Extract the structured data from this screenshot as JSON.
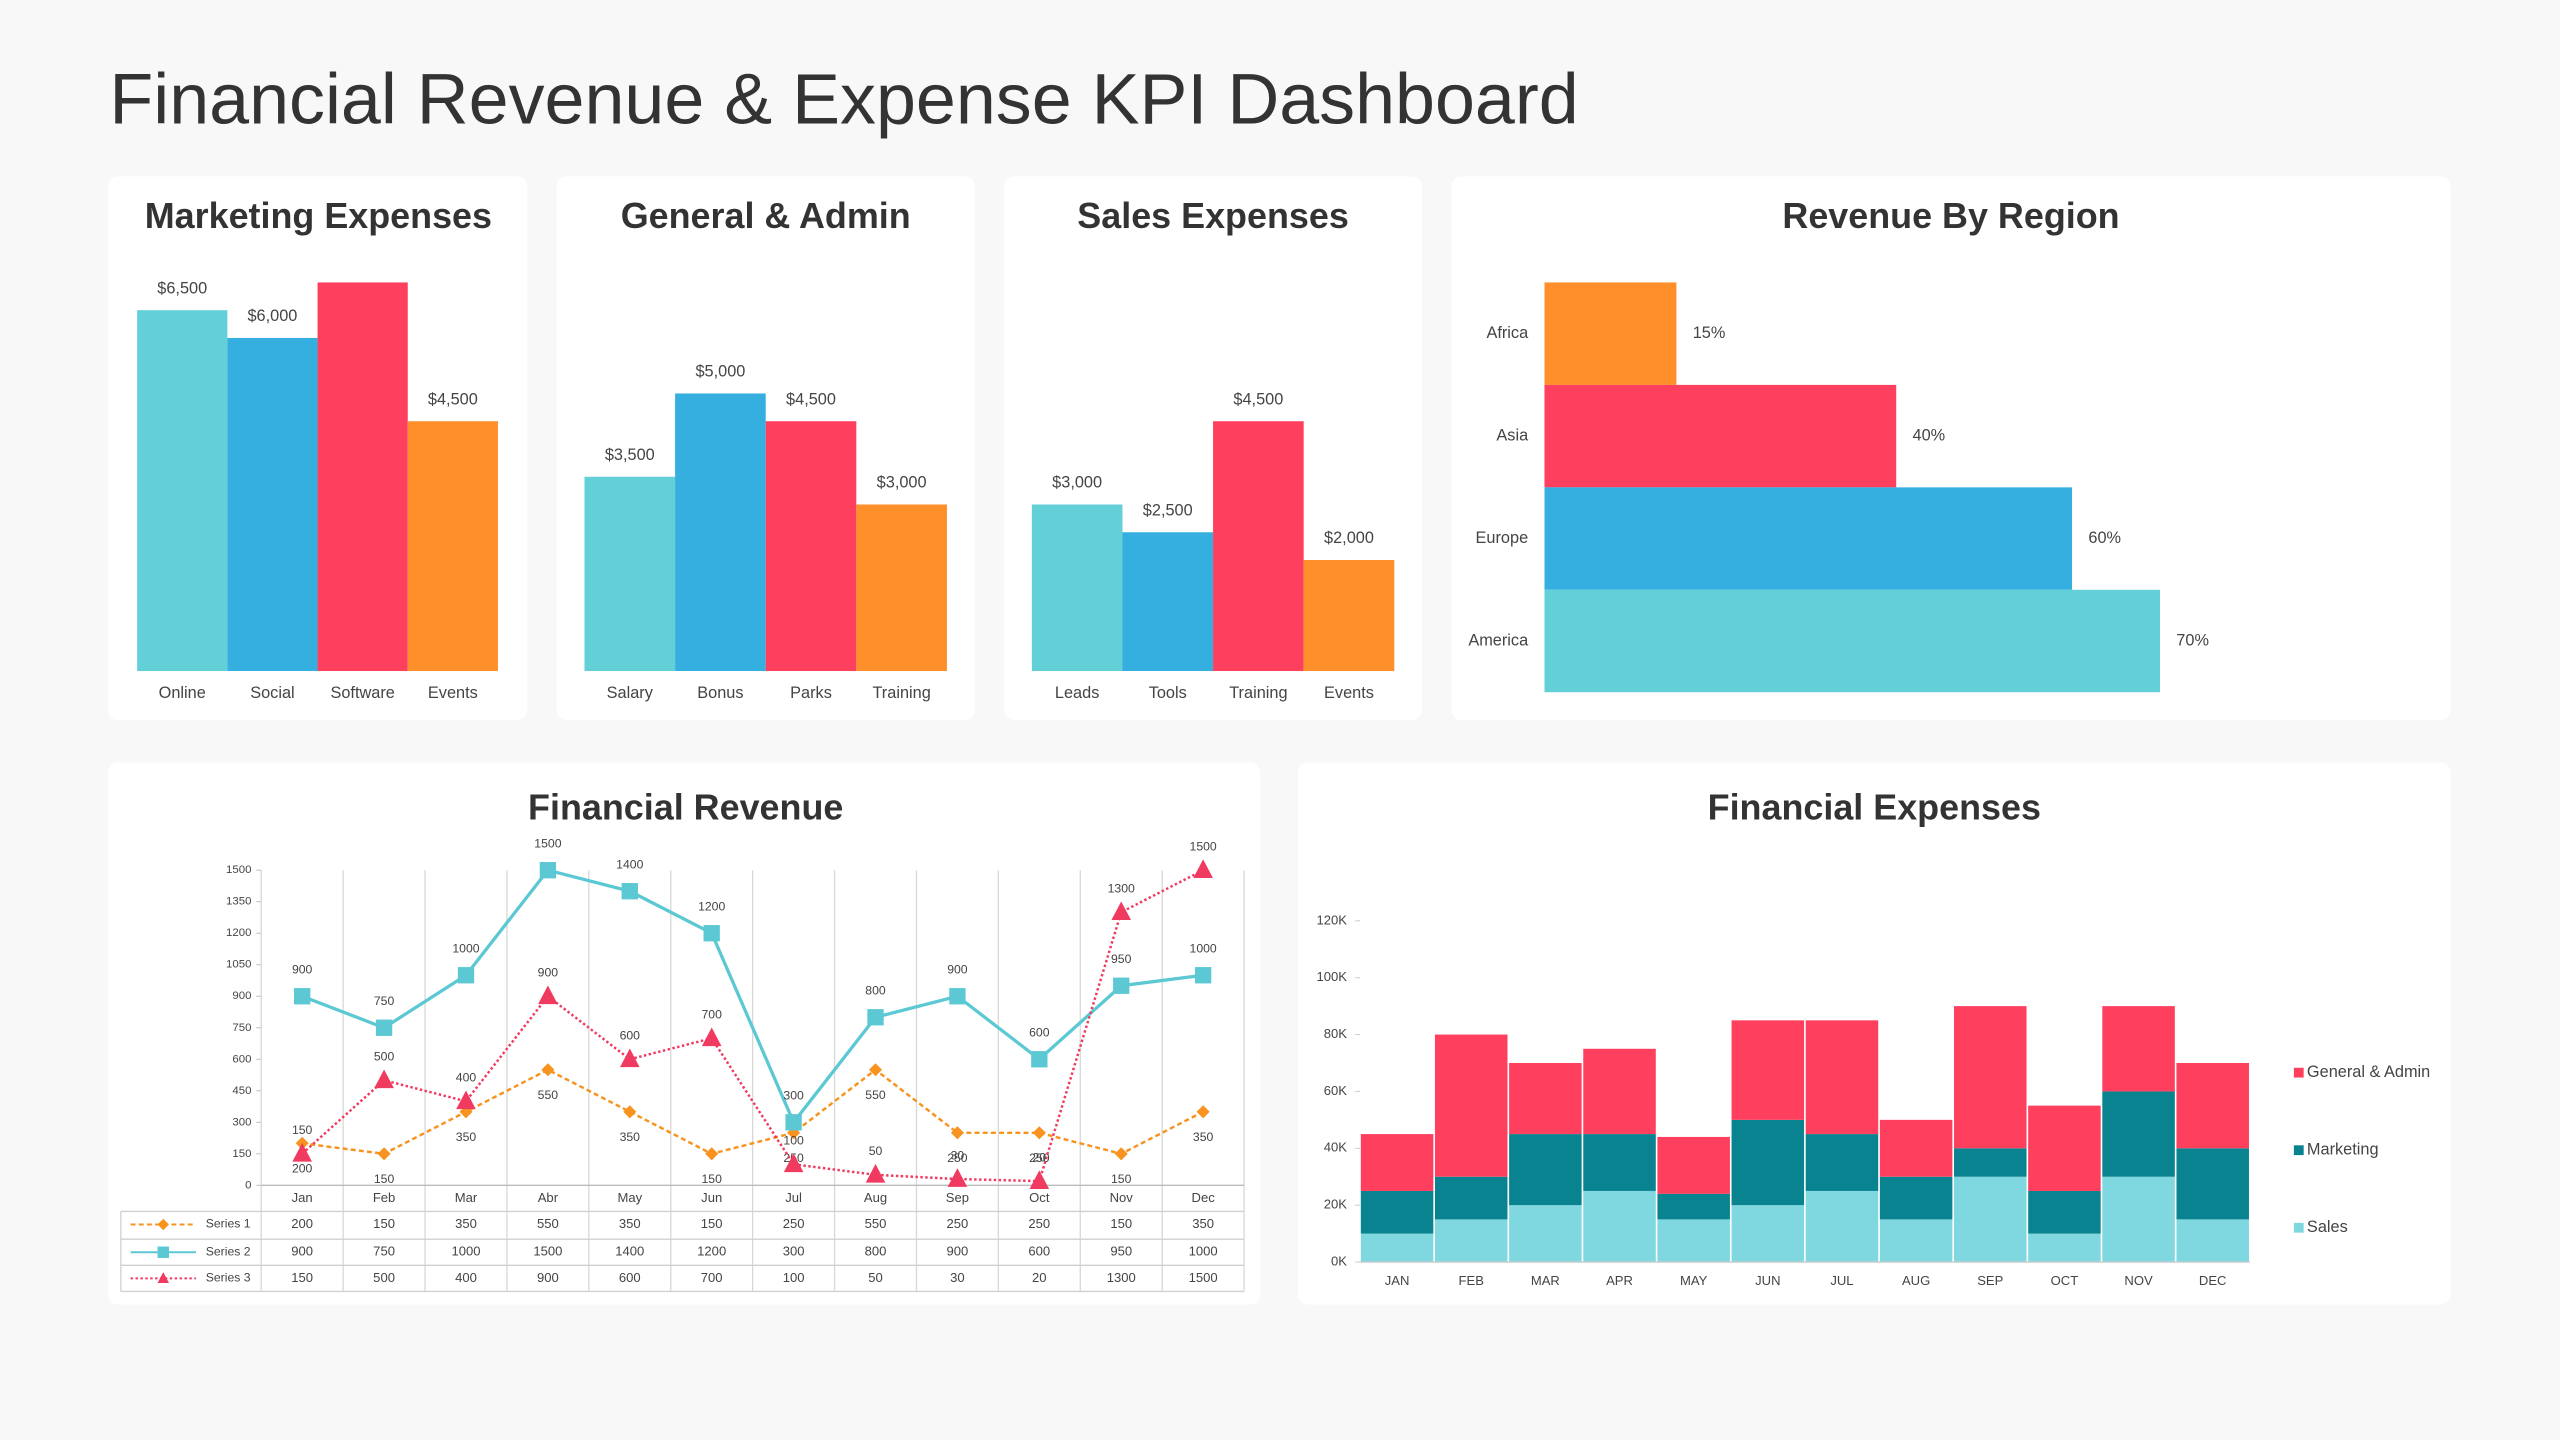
{
  "title": "Financial Revenue & Expense KPI Dashboard",
  "chart_data": [
    {
      "type": "bar",
      "title": "Marketing Expenses",
      "categories": [
        "Online",
        "Social",
        "Software",
        "Events"
      ],
      "values": [
        6500,
        6000,
        7000,
        4500
      ],
      "value_labels": [
        "$6,500",
        "$6,000",
        null,
        "$4,500"
      ],
      "colors": [
        "#63d0d8",
        "#35aee0",
        "#fe3f5e",
        "#fe8f2a"
      ]
    },
    {
      "type": "bar",
      "title": "General & Admin",
      "categories": [
        "Salary",
        "Bonus",
        "Parks",
        "Training"
      ],
      "values": [
        3500,
        5000,
        4500,
        3000
      ],
      "value_labels": [
        "$3,500",
        "$5,000",
        "$4,500",
        "$3,000"
      ],
      "colors": [
        "#63d0d8",
        "#35aee0",
        "#fe3f5e",
        "#fe8f2a"
      ]
    },
    {
      "type": "bar",
      "title": "Sales Expenses",
      "categories": [
        "Leads",
        "Tools",
        "Training",
        "Events"
      ],
      "values": [
        3000,
        2500,
        4500,
        2000
      ],
      "value_labels": [
        "$3,000",
        "$2,500",
        "$4,500",
        "$2,000"
      ],
      "colors": [
        "#63d0d8",
        "#35aee0",
        "#fe3f5e",
        "#fe8f2a"
      ]
    },
    {
      "type": "barh",
      "title": "Revenue By Region",
      "categories": [
        "Africa",
        "Asia",
        "Europe",
        "America"
      ],
      "values": [
        15,
        40,
        60,
        70
      ],
      "value_labels": [
        "15%",
        "40%",
        "60%",
        "70%"
      ],
      "colors": [
        "#fe8f2a",
        "#fe3f5e",
        "#35aee0",
        "#63d0d8"
      ]
    },
    {
      "type": "line",
      "title": "Financial Revenue",
      "categories": [
        "Jan",
        "Feb",
        "Mar",
        "Abr",
        "May",
        "Jun",
        "Jul",
        "Aug",
        "Sep",
        "Oct",
        "Nov",
        "Dec"
      ],
      "series": [
        {
          "name": "Series 1",
          "color": "#f7931e",
          "marker": "diamond",
          "line_style": "dashed",
          "values": [
            200,
            150,
            350,
            550,
            350,
            150,
            250,
            550,
            250,
            250,
            150,
            350
          ]
        },
        {
          "name": "Series 2",
          "color": "#5bc8d3",
          "marker": "square",
          "line_style": "solid",
          "values": [
            900,
            750,
            1000,
            1500,
            1400,
            1200,
            300,
            800,
            900,
            600,
            950,
            1000
          ]
        },
        {
          "name": "Series 3",
          "color": "#f03a5f",
          "marker": "triangle",
          "line_style": "dotted",
          "values": [
            150,
            500,
            400,
            900,
            600,
            700,
            100,
            50,
            30,
            20,
            1300,
            1500
          ]
        }
      ],
      "ylim": [
        0,
        1500
      ],
      "yticks": [
        0,
        150,
        300,
        450,
        600,
        750,
        900,
        1050,
        1200,
        1350,
        1500
      ],
      "data_table": true
    },
    {
      "type": "stacked_bar",
      "title": "Financial Expenses",
      "categories": [
        "JAN",
        "FEB",
        "MAR",
        "APR",
        "MAY",
        "JUN",
        "JUL",
        "AUG",
        "SEP",
        "OCT",
        "NOV",
        "DEC"
      ],
      "series": [
        {
          "name": "General & Admin",
          "color": "#fe3f5e",
          "values": [
            20000,
            50000,
            25000,
            30000,
            20000,
            35000,
            40000,
            20000,
            50000,
            30000,
            30000,
            30000
          ]
        },
        {
          "name": "Marketing",
          "color": "#0a8391",
          "values": [
            15000,
            15000,
            25000,
            20000,
            9000,
            30000,
            20000,
            15000,
            10000,
            15000,
            30000,
            25000
          ]
        },
        {
          "name": "Sales",
          "color": "#7fd8e0",
          "values": [
            10000,
            15000,
            20000,
            25000,
            15000,
            20000,
            25000,
            15000,
            30000,
            10000,
            30000,
            15000
          ]
        }
      ],
      "ylim": [
        0,
        120000
      ],
      "yticks": [
        {
          "value": 0,
          "label": "0K"
        },
        {
          "value": 20000,
          "label": "20K"
        },
        {
          "value": 40000,
          "label": "40K"
        },
        {
          "value": 60000,
          "label": "60K"
        },
        {
          "value": 80000,
          "label": "80K"
        },
        {
          "value": 100000,
          "label": "100K"
        },
        {
          "value": 120000,
          "label": "120K"
        }
      ],
      "legend": "right"
    }
  ]
}
